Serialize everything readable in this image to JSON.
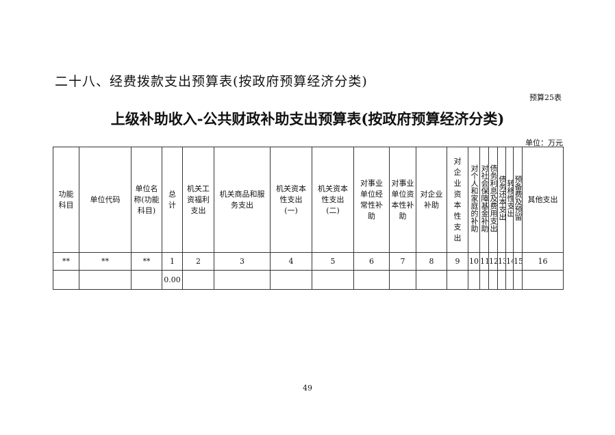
{
  "section_title": "二十八、经费拨款支出预算表(按政府预算经济分类)",
  "table_code": "预算25表",
  "main_title": "上级补助收入-公共财政补助支出预算表(按政府预算经济分类)",
  "unit": "单位：万元",
  "table": {
    "headers": [
      "功能科目",
      "单位代码",
      "单位名称(功能科目)",
      "总计",
      "机关工资福利支出",
      "机关商品和服务支出",
      "机关资本性支出(一)",
      "机关资本性支出(二)",
      "对事业单位经常性补助",
      "对事业单位资本性补助",
      "对企业补助",
      "对企业资本性支出",
      "对个人和家庭的补助",
      "对社会保障基金补助",
      "债务利息及费用支出",
      "债务还本支出",
      "转移性支出",
      "预备费及预留",
      "其他支出"
    ],
    "number_row": [
      "**",
      "**",
      "**",
      "1",
      "2",
      "3",
      "4",
      "5",
      "6",
      "7",
      "8",
      "9",
      "10",
      "11",
      "12",
      "13",
      "14",
      "15",
      "16"
    ],
    "data_row": [
      "",
      "",
      "",
      "0.00",
      "",
      "",
      "",
      "",
      "",
      "",
      "",
      "",
      "",
      "",
      "",
      "",
      "",
      "",
      ""
    ]
  },
  "page_number": "49"
}
